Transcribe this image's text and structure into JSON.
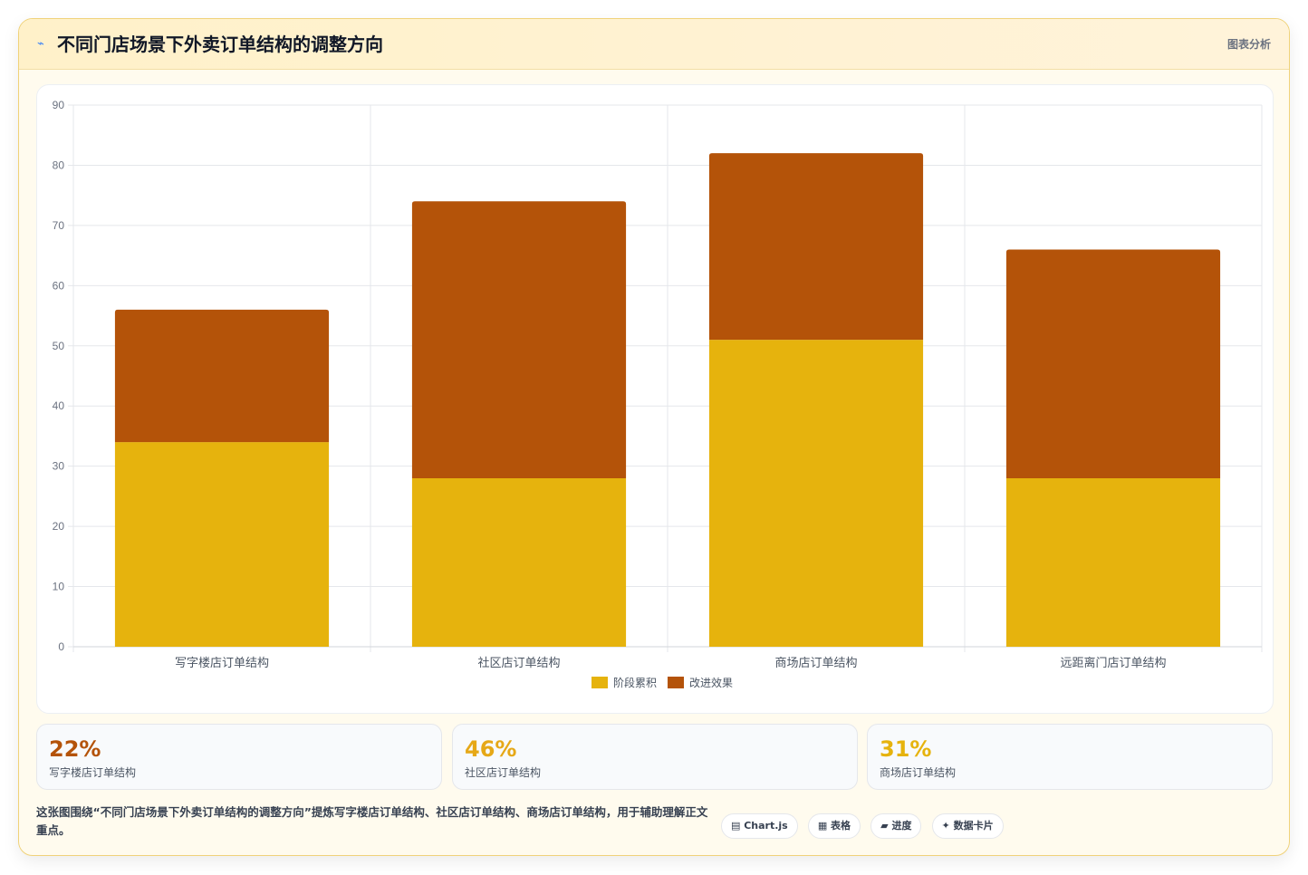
{
  "header": {
    "icon": "chart-line-icon",
    "title": "不同门店场景下外卖订单结构的调整方向",
    "tag": "图表分析"
  },
  "colors": {
    "series_1": "#e6b30d",
    "series_2": "#b45309",
    "accent_orange": "#b45309",
    "accent_gold": "#e6a817",
    "border": "#f0d27a"
  },
  "chart_data": {
    "type": "bar",
    "stacked": true,
    "categories": [
      "写字楼店订单结构",
      "社区店订单结构",
      "商场店订单结构",
      "远距离门店订单结构"
    ],
    "series": [
      {
        "name": "阶段累积",
        "values": [
          34,
          28,
          51,
          28
        ],
        "color": "#e6b30d"
      },
      {
        "name": "改进效果",
        "values": [
          22,
          46,
          31,
          38
        ],
        "color": "#b45309"
      }
    ],
    "ylim": [
      0,
      90
    ],
    "yticks": [
      0,
      10,
      20,
      30,
      40,
      50,
      60,
      70,
      80,
      90
    ],
    "grid": true,
    "legend": "bottom"
  },
  "stats": [
    {
      "value": "22%",
      "label": "写字楼店订单结构",
      "color": "#b45309"
    },
    {
      "value": "46%",
      "label": "社区店订单结构",
      "color": "#e6a817"
    },
    {
      "value": "31%",
      "label": "商场店订单结构",
      "color": "#e6b30d"
    }
  ],
  "description": "这张图围绕“不同门店场景下外卖订单结构的调整方向”提炼写字楼店订单结构、社区店订单结构、商场店订单结构，用于辅助理解正文重点。",
  "chips": [
    {
      "label": "▤ Chart.js"
    },
    {
      "label": "▦ 表格"
    },
    {
      "label": "▰ 进度"
    },
    {
      "label": "✦ 数据卡片"
    }
  ]
}
